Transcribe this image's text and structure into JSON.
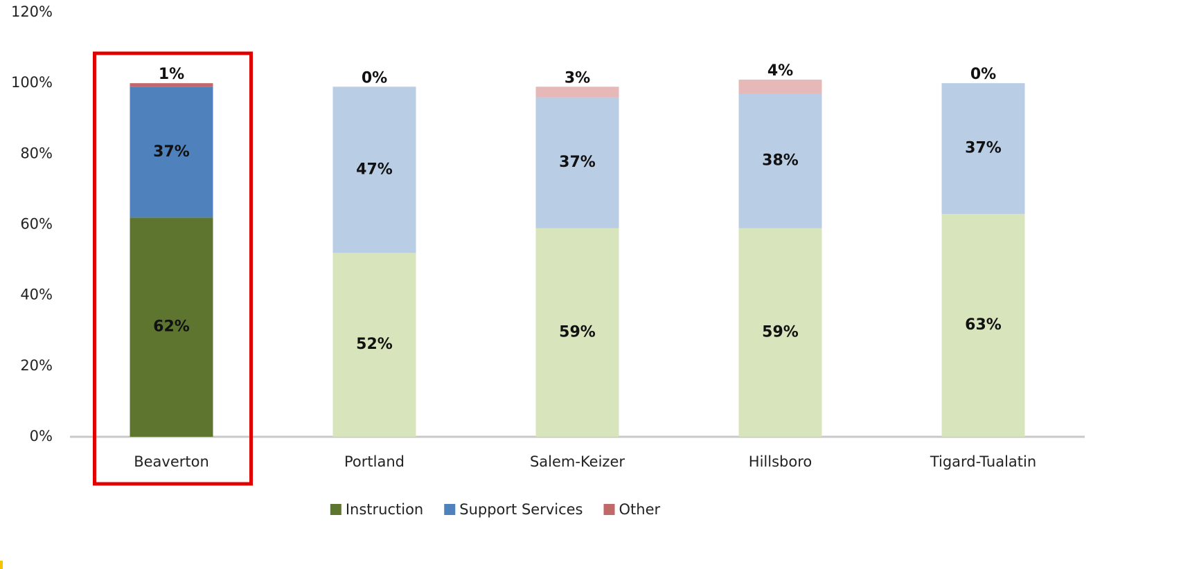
{
  "chart_data": {
    "type": "stacked_bar",
    "categories": [
      "Beaverton",
      "Portland",
      "Salem-Keizer",
      "Hillsboro",
      "Tigard-Tualatin"
    ],
    "series": [
      {
        "name": "Instruction",
        "color": "#5e7530",
        "colors": [
          "#5e7530",
          "#d8e4bc",
          "#d8e4bc",
          "#d8e4bc",
          "#d8e4bc"
        ],
        "values": [
          62,
          52,
          59,
          59,
          63
        ],
        "value_labels": [
          "62%",
          "52%",
          "59%",
          "59%",
          "63%"
        ]
      },
      {
        "name": "Support Services",
        "color": "#4f81bd",
        "colors": [
          "#4f81bd",
          "#b9cde5",
          "#b9cde5",
          "#b9cde5",
          "#b9cde5"
        ],
        "values": [
          37,
          47,
          37,
          38,
          37
        ],
        "value_labels": [
          "37%",
          "47%",
          "37%",
          "38%",
          "37%"
        ]
      },
      {
        "name": "Other",
        "color": "#c0686a",
        "colors": [
          "#c0686a",
          "#e6b9b8",
          "#e6b9b8",
          "#e6b9b8",
          "#e6b9b8"
        ],
        "values": [
          1,
          0,
          3,
          4,
          0
        ],
        "value_labels": [
          "1%",
          "0%",
          "3%",
          "4%",
          "0%"
        ]
      }
    ],
    "ylim": [
      0,
      120
    ],
    "yticks": [
      {
        "value": 0,
        "label": "0%"
      },
      {
        "value": 20,
        "label": "20%"
      },
      {
        "value": 40,
        "label": "40%"
      },
      {
        "value": 60,
        "label": "60%"
      },
      {
        "value": 80,
        "label": "80%"
      },
      {
        "value": 100,
        "label": "100%"
      },
      {
        "value": 120,
        "label": "120%"
      }
    ],
    "legend": "bottom"
  }
}
